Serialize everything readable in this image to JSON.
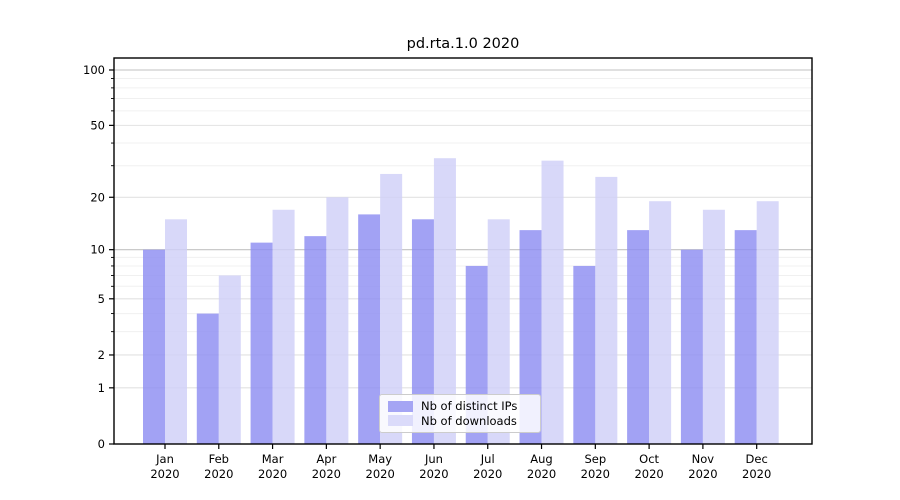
{
  "chart_data": {
    "type": "bar",
    "title": "pd.rta.1.0 2020",
    "categories": [
      "Jan 2020",
      "Feb 2020",
      "Mar 2020",
      "Apr 2020",
      "May 2020",
      "Jun 2020",
      "Jul 2020",
      "Aug 2020",
      "Sep 2020",
      "Oct 2020",
      "Nov 2020",
      "Dec 2020"
    ],
    "series": [
      {
        "name": "Nb of distinct IPs",
        "color": "#8e8ef1",
        "apparent_color": "#a5a5f4",
        "values": [
          10,
          4,
          11,
          12,
          16,
          15,
          8,
          13,
          8,
          13,
          10,
          13
        ]
      },
      {
        "name": "Nb of downloads",
        "color": "#d0d0f8",
        "apparent_color": "#dbdbfa",
        "values": [
          15,
          7,
          17,
          20,
          27,
          33,
          15,
          32,
          26,
          19,
          17,
          19
        ]
      }
    ],
    "xlabel": "",
    "ylabel": "",
    "y_scale": "log10(1+value)",
    "ylim": [
      0,
      116
    ],
    "yticks": [
      0,
      1,
      2,
      5,
      10,
      20,
      50,
      100
    ],
    "yticks_minor": [
      3,
      4,
      6,
      7,
      8,
      9,
      30,
      40,
      60,
      70,
      80,
      90
    ],
    "grid": "on",
    "legend_position": "lower center",
    "colors": {
      "axis": "#000000",
      "grid_major": "#c2c2c2",
      "grid_labeled": "#e2e2e2",
      "grid_minor": "#f0f0f0",
      "text": "#000000",
      "legend_border": "#cccccc"
    }
  }
}
